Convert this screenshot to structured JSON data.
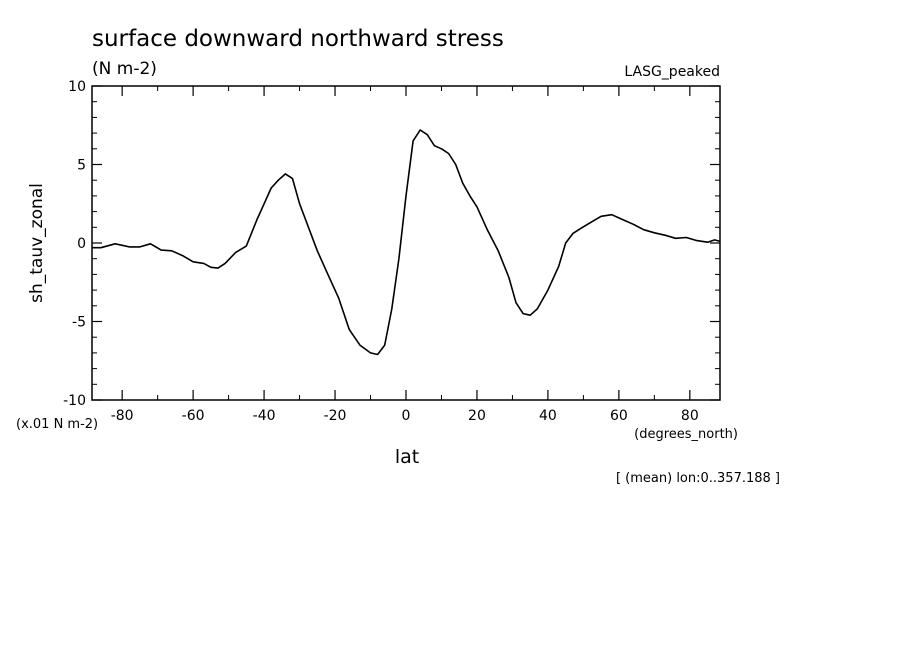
{
  "chart_data": {
    "type": "line",
    "title": "surface downward northward stress",
    "units": "(N m-2)",
    "dataset_label": "LASG_peaked",
    "ylabel": "sh_tauv_zonal",
    "y_scale_note": "(x.01 N m-2)",
    "xlabel": "lat",
    "x_units": "(degrees_north)",
    "footnote": "[ (mean) lon:0..357.188 ]",
    "xlim": [
      -88.5,
      88.5
    ],
    "ylim": [
      -10,
      10
    ],
    "x_ticks": [
      -80,
      -60,
      -40,
      -20,
      0,
      20,
      40,
      60,
      80
    ],
    "x_tick_labels": [
      "-80",
      "-60",
      "-40",
      "-20",
      "0",
      "20",
      "40",
      "60",
      "80"
    ],
    "y_ticks": [
      -10,
      -5,
      0,
      5,
      10
    ],
    "y_tick_labels": [
      "-10",
      "-5",
      "0",
      "5",
      "10"
    ],
    "grid": false,
    "series": [
      {
        "color": "#000000",
        "x": [
          -88.5,
          -86,
          -82,
          -78,
          -75,
          -72,
          -69,
          -66,
          -63,
          -60,
          -57,
          -55,
          -53,
          -51,
          -48,
          -45,
          -42,
          -40,
          -38,
          -36,
          -34,
          -32,
          -30,
          -28,
          -25,
          -22,
          -19,
          -16,
          -13,
          -10,
          -8,
          -6,
          -4,
          -2,
          0,
          2,
          4,
          6,
          8,
          10,
          12,
          14,
          16,
          18,
          20,
          23,
          26,
          29,
          31,
          33,
          35,
          37,
          40,
          43,
          45,
          47,
          49,
          52,
          55,
          58,
          61,
          64,
          67,
          70,
          73,
          76,
          79,
          82,
          85,
          87,
          88.5
        ],
        "y": [
          -0.3,
          -0.3,
          -0.05,
          -0.25,
          -0.25,
          -0.05,
          -0.45,
          -0.5,
          -0.8,
          -1.2,
          -1.3,
          -1.55,
          -1.6,
          -1.3,
          -0.6,
          -0.2,
          1.5,
          2.5,
          3.5,
          4.0,
          4.4,
          4.1,
          2.5,
          1.3,
          -0.5,
          -2.0,
          -3.5,
          -5.5,
          -6.5,
          -7.0,
          -7.1,
          -6.5,
          -4.2,
          -1.0,
          3.0,
          6.5,
          7.2,
          6.9,
          6.2,
          6.0,
          5.7,
          5.0,
          3.8,
          3.0,
          2.3,
          0.8,
          -0.5,
          -2.2,
          -3.8,
          -4.5,
          -4.6,
          -4.2,
          -3.0,
          -1.5,
          0.0,
          0.6,
          0.9,
          1.3,
          1.7,
          1.8,
          1.5,
          1.2,
          0.85,
          0.65,
          0.5,
          0.3,
          0.35,
          0.15,
          0.05,
          0.2,
          0.1
        ]
      }
    ]
  }
}
